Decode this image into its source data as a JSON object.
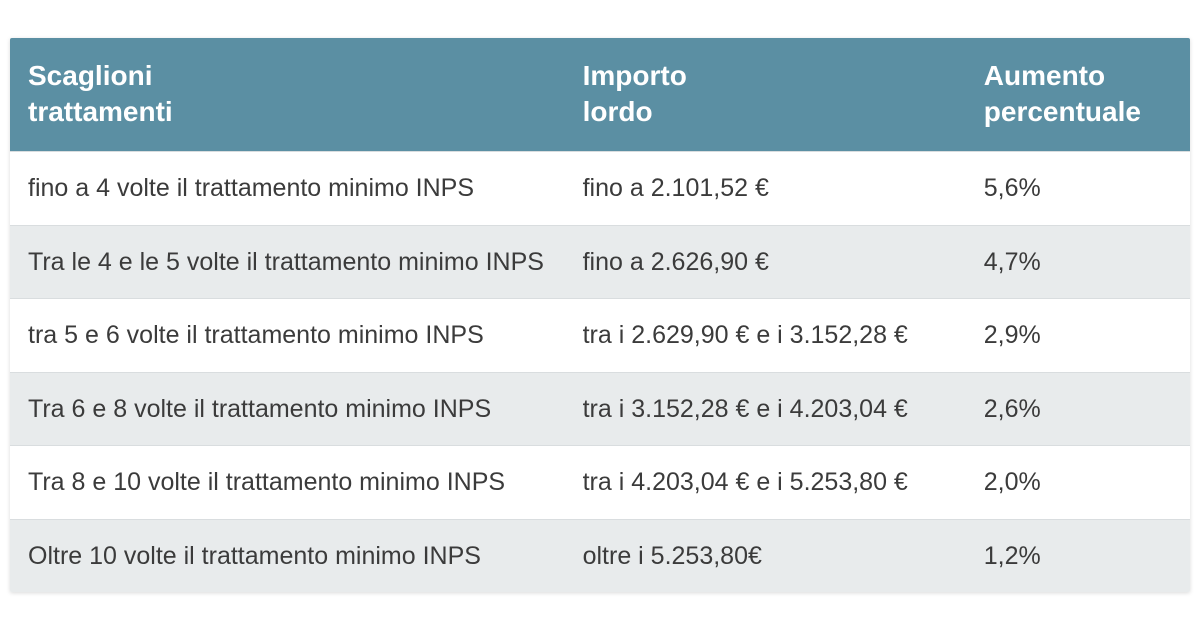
{
  "colors": {
    "header_bg": "#5b8fa3",
    "header_text": "#ffffff",
    "body_text": "#3b3b3b",
    "row_alt_bg": "#e8ebec",
    "row_line": "#d9dddf"
  },
  "font": {
    "header_pt": 28,
    "body_pt": 25,
    "weight_header": 700,
    "weight_body": 400
  },
  "table": {
    "columns": [
      {
        "label_l1": "Scaglioni",
        "label_l2": "trattamenti",
        "width_pct": 47
      },
      {
        "label_l1": "Importo",
        "label_l2": "lordo",
        "width_pct": 34
      },
      {
        "label_l1": "Aumento",
        "label_l2": "percentuale",
        "width_pct": 19
      }
    ],
    "rows": [
      [
        "fino a 4 volte il trattamento minimo INPS",
        "fino a 2.101,52 €",
        "5,6%"
      ],
      [
        "Tra le 4 e le 5 volte il trattamento minimo INPS",
        "fino a 2.626,90 €",
        "4,7%"
      ],
      [
        "tra 5 e 6 volte il trattamento minimo INPS",
        "tra i 2.629,90 € e i 3.152,28 €",
        "2,9%"
      ],
      [
        "Tra 6 e 8 volte il trattamento minimo INPS",
        "tra i 3.152,28 € e i 4.203,04 €",
        "2,6%"
      ],
      [
        "Tra 8 e 10 volte il trattamento minimo INPS",
        "tra i 4.203,04 € e i 5.253,80 €",
        "2,0%"
      ],
      [
        "Oltre 10 volte il trattamento minimo INPS",
        "oltre i 5.253,80€",
        "1,2%"
      ]
    ]
  }
}
